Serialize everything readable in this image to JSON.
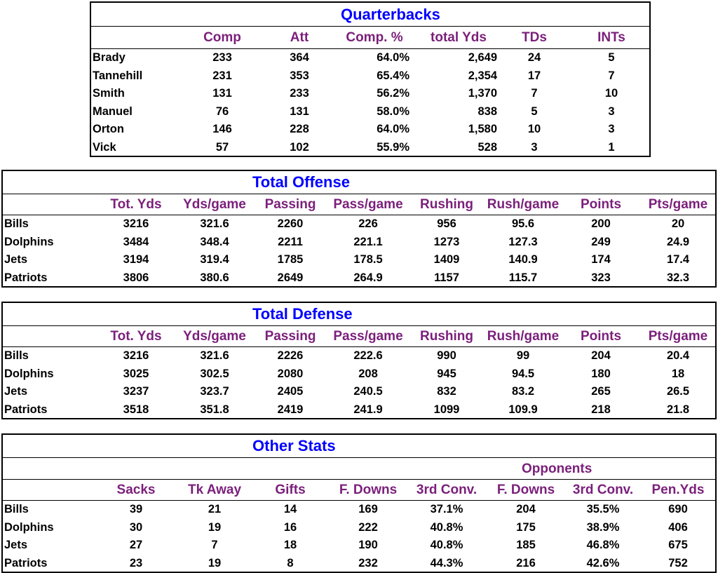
{
  "quarterbacks": {
    "title": "Quarterbacks",
    "headers": [
      "Comp",
      "Att",
      "Comp. %",
      "total Yds",
      "TDs",
      "INTs"
    ],
    "rows": [
      {
        "name": "Brady",
        "values": [
          "233",
          "364",
          "64.0%",
          "2,649",
          "24",
          "5"
        ]
      },
      {
        "name": "Tannehill",
        "values": [
          "231",
          "353",
          "65.4%",
          "2,354",
          "17",
          "7"
        ]
      },
      {
        "name": "Smith",
        "values": [
          "131",
          "233",
          "56.2%",
          "1,370",
          "7",
          "10"
        ]
      },
      {
        "name": "Manuel",
        "values": [
          "76",
          "131",
          "58.0%",
          "838",
          "5",
          "3"
        ]
      },
      {
        "name": "Orton",
        "values": [
          "146",
          "228",
          "64.0%",
          "1,580",
          "10",
          "3"
        ]
      },
      {
        "name": "Vick",
        "values": [
          "57",
          "102",
          "55.9%",
          "528",
          "3",
          "1"
        ]
      }
    ]
  },
  "total_offense": {
    "title": "Total Offense",
    "headers": [
      "Tot. Yds",
      "Yds/game",
      "Passing",
      "Pass/game",
      "Rushing",
      "Rush/game",
      "Points",
      "Pts/game"
    ],
    "rows": [
      {
        "name": "Bills",
        "values": [
          "3216",
          "321.6",
          "2260",
          "226",
          "956",
          "95.6",
          "200",
          "20"
        ]
      },
      {
        "name": "Dolphins",
        "values": [
          "3484",
          "348.4",
          "2211",
          "221.1",
          "1273",
          "127.3",
          "249",
          "24.9"
        ]
      },
      {
        "name": "Jets",
        "values": [
          "3194",
          "319.4",
          "1785",
          "178.5",
          "1409",
          "140.9",
          "174",
          "17.4"
        ]
      },
      {
        "name": "Patriots",
        "values": [
          "3806",
          "380.6",
          "2649",
          "264.9",
          "1157",
          "115.7",
          "323",
          "32.3"
        ]
      }
    ]
  },
  "total_defense": {
    "title": "Total Defense",
    "headers": [
      "Tot. Yds",
      "Yds/game",
      "Passing",
      "Pass/game",
      "Rushing",
      "Rush/game",
      "Points",
      "Pts/game"
    ],
    "rows": [
      {
        "name": "Bills",
        "values": [
          "3216",
          "321.6",
          "2226",
          "222.6",
          "990",
          "99",
          "204",
          "20.4"
        ]
      },
      {
        "name": "Dolphins",
        "values": [
          "3025",
          "302.5",
          "2080",
          "208",
          "945",
          "94.5",
          "180",
          "18"
        ]
      },
      {
        "name": "Jets",
        "values": [
          "3237",
          "323.7",
          "2405",
          "240.5",
          "832",
          "83.2",
          "265",
          "26.5"
        ]
      },
      {
        "name": "Patriots",
        "values": [
          "3518",
          "351.8",
          "2419",
          "241.9",
          "1099",
          "109.9",
          "218",
          "21.8"
        ]
      }
    ]
  },
  "other_stats": {
    "title": "Other Stats",
    "opponents_label": "Opponents",
    "headers": [
      "Sacks",
      "Tk Away",
      "Gifts",
      "F. Downs",
      "3rd Conv.",
      "F. Downs",
      "3rd Conv.",
      "Pen.Yds"
    ],
    "rows": [
      {
        "name": "Bills",
        "values": [
          "39",
          "21",
          "14",
          "169",
          "37.1%",
          "204",
          "35.5%",
          "690"
        ]
      },
      {
        "name": "Dolphins",
        "values": [
          "30",
          "19",
          "16",
          "222",
          "40.8%",
          "175",
          "38.9%",
          "406"
        ]
      },
      {
        "name": "Jets",
        "values": [
          "27",
          "7",
          "18",
          "190",
          "40.8%",
          "185",
          "46.8%",
          "675"
        ]
      },
      {
        "name": "Patriots",
        "values": [
          "23",
          "19",
          "8",
          "232",
          "44.3%",
          "216",
          "42.6%",
          "752"
        ]
      }
    ]
  }
}
